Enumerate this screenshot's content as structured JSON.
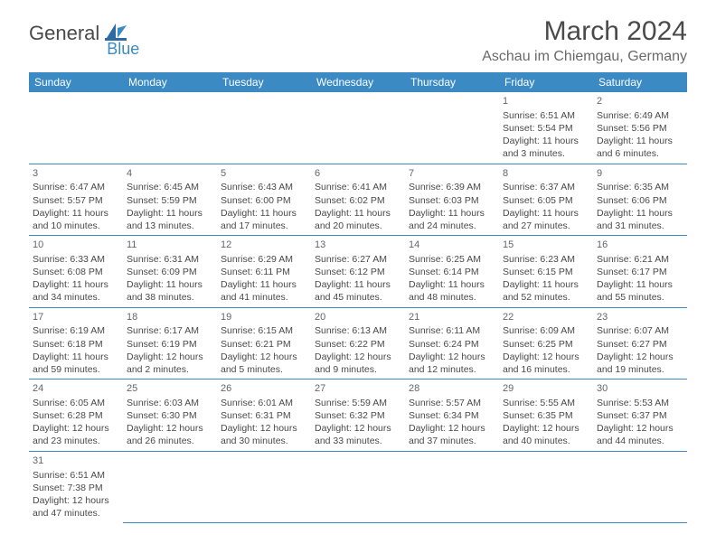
{
  "logo": {
    "general": "General",
    "blue": "Blue"
  },
  "title": "March 2024",
  "location": "Aschau im Chiemgau, Germany",
  "colors": {
    "header_bg": "#3b8ac4",
    "header_text": "#ffffff",
    "border": "#3b8ac4",
    "text": "#4a4a4a",
    "background": "#ffffff"
  },
  "typography": {
    "title_fontsize": 30,
    "location_fontsize": 16,
    "dayheader_fontsize": 12,
    "cell_fontsize": 10.5,
    "font_family": "Arial"
  },
  "day_headers": [
    "Sunday",
    "Monday",
    "Tuesday",
    "Wednesday",
    "Thursday",
    "Friday",
    "Saturday"
  ],
  "weeks": [
    [
      null,
      null,
      null,
      null,
      null,
      {
        "n": "1",
        "sr": "Sunrise: 6:51 AM",
        "ss": "Sunset: 5:54 PM",
        "d1": "Daylight: 11 hours",
        "d2": "and 3 minutes."
      },
      {
        "n": "2",
        "sr": "Sunrise: 6:49 AM",
        "ss": "Sunset: 5:56 PM",
        "d1": "Daylight: 11 hours",
        "d2": "and 6 minutes."
      }
    ],
    [
      {
        "n": "3",
        "sr": "Sunrise: 6:47 AM",
        "ss": "Sunset: 5:57 PM",
        "d1": "Daylight: 11 hours",
        "d2": "and 10 minutes."
      },
      {
        "n": "4",
        "sr": "Sunrise: 6:45 AM",
        "ss": "Sunset: 5:59 PM",
        "d1": "Daylight: 11 hours",
        "d2": "and 13 minutes."
      },
      {
        "n": "5",
        "sr": "Sunrise: 6:43 AM",
        "ss": "Sunset: 6:00 PM",
        "d1": "Daylight: 11 hours",
        "d2": "and 17 minutes."
      },
      {
        "n": "6",
        "sr": "Sunrise: 6:41 AM",
        "ss": "Sunset: 6:02 PM",
        "d1": "Daylight: 11 hours",
        "d2": "and 20 minutes."
      },
      {
        "n": "7",
        "sr": "Sunrise: 6:39 AM",
        "ss": "Sunset: 6:03 PM",
        "d1": "Daylight: 11 hours",
        "d2": "and 24 minutes."
      },
      {
        "n": "8",
        "sr": "Sunrise: 6:37 AM",
        "ss": "Sunset: 6:05 PM",
        "d1": "Daylight: 11 hours",
        "d2": "and 27 minutes."
      },
      {
        "n": "9",
        "sr": "Sunrise: 6:35 AM",
        "ss": "Sunset: 6:06 PM",
        "d1": "Daylight: 11 hours",
        "d2": "and 31 minutes."
      }
    ],
    [
      {
        "n": "10",
        "sr": "Sunrise: 6:33 AM",
        "ss": "Sunset: 6:08 PM",
        "d1": "Daylight: 11 hours",
        "d2": "and 34 minutes."
      },
      {
        "n": "11",
        "sr": "Sunrise: 6:31 AM",
        "ss": "Sunset: 6:09 PM",
        "d1": "Daylight: 11 hours",
        "d2": "and 38 minutes."
      },
      {
        "n": "12",
        "sr": "Sunrise: 6:29 AM",
        "ss": "Sunset: 6:11 PM",
        "d1": "Daylight: 11 hours",
        "d2": "and 41 minutes."
      },
      {
        "n": "13",
        "sr": "Sunrise: 6:27 AM",
        "ss": "Sunset: 6:12 PM",
        "d1": "Daylight: 11 hours",
        "d2": "and 45 minutes."
      },
      {
        "n": "14",
        "sr": "Sunrise: 6:25 AM",
        "ss": "Sunset: 6:14 PM",
        "d1": "Daylight: 11 hours",
        "d2": "and 48 minutes."
      },
      {
        "n": "15",
        "sr": "Sunrise: 6:23 AM",
        "ss": "Sunset: 6:15 PM",
        "d1": "Daylight: 11 hours",
        "d2": "and 52 minutes."
      },
      {
        "n": "16",
        "sr": "Sunrise: 6:21 AM",
        "ss": "Sunset: 6:17 PM",
        "d1": "Daylight: 11 hours",
        "d2": "and 55 minutes."
      }
    ],
    [
      {
        "n": "17",
        "sr": "Sunrise: 6:19 AM",
        "ss": "Sunset: 6:18 PM",
        "d1": "Daylight: 11 hours",
        "d2": "and 59 minutes."
      },
      {
        "n": "18",
        "sr": "Sunrise: 6:17 AM",
        "ss": "Sunset: 6:19 PM",
        "d1": "Daylight: 12 hours",
        "d2": "and 2 minutes."
      },
      {
        "n": "19",
        "sr": "Sunrise: 6:15 AM",
        "ss": "Sunset: 6:21 PM",
        "d1": "Daylight: 12 hours",
        "d2": "and 5 minutes."
      },
      {
        "n": "20",
        "sr": "Sunrise: 6:13 AM",
        "ss": "Sunset: 6:22 PM",
        "d1": "Daylight: 12 hours",
        "d2": "and 9 minutes."
      },
      {
        "n": "21",
        "sr": "Sunrise: 6:11 AM",
        "ss": "Sunset: 6:24 PM",
        "d1": "Daylight: 12 hours",
        "d2": "and 12 minutes."
      },
      {
        "n": "22",
        "sr": "Sunrise: 6:09 AM",
        "ss": "Sunset: 6:25 PM",
        "d1": "Daylight: 12 hours",
        "d2": "and 16 minutes."
      },
      {
        "n": "23",
        "sr": "Sunrise: 6:07 AM",
        "ss": "Sunset: 6:27 PM",
        "d1": "Daylight: 12 hours",
        "d2": "and 19 minutes."
      }
    ],
    [
      {
        "n": "24",
        "sr": "Sunrise: 6:05 AM",
        "ss": "Sunset: 6:28 PM",
        "d1": "Daylight: 12 hours",
        "d2": "and 23 minutes."
      },
      {
        "n": "25",
        "sr": "Sunrise: 6:03 AM",
        "ss": "Sunset: 6:30 PM",
        "d1": "Daylight: 12 hours",
        "d2": "and 26 minutes."
      },
      {
        "n": "26",
        "sr": "Sunrise: 6:01 AM",
        "ss": "Sunset: 6:31 PM",
        "d1": "Daylight: 12 hours",
        "d2": "and 30 minutes."
      },
      {
        "n": "27",
        "sr": "Sunrise: 5:59 AM",
        "ss": "Sunset: 6:32 PM",
        "d1": "Daylight: 12 hours",
        "d2": "and 33 minutes."
      },
      {
        "n": "28",
        "sr": "Sunrise: 5:57 AM",
        "ss": "Sunset: 6:34 PM",
        "d1": "Daylight: 12 hours",
        "d2": "and 37 minutes."
      },
      {
        "n": "29",
        "sr": "Sunrise: 5:55 AM",
        "ss": "Sunset: 6:35 PM",
        "d1": "Daylight: 12 hours",
        "d2": "and 40 minutes."
      },
      {
        "n": "30",
        "sr": "Sunrise: 5:53 AM",
        "ss": "Sunset: 6:37 PM",
        "d1": "Daylight: 12 hours",
        "d2": "and 44 minutes."
      }
    ],
    [
      {
        "n": "31",
        "sr": "Sunrise: 6:51 AM",
        "ss": "Sunset: 7:38 PM",
        "d1": "Daylight: 12 hours",
        "d2": "and 47 minutes."
      },
      null,
      null,
      null,
      null,
      null,
      null
    ]
  ]
}
